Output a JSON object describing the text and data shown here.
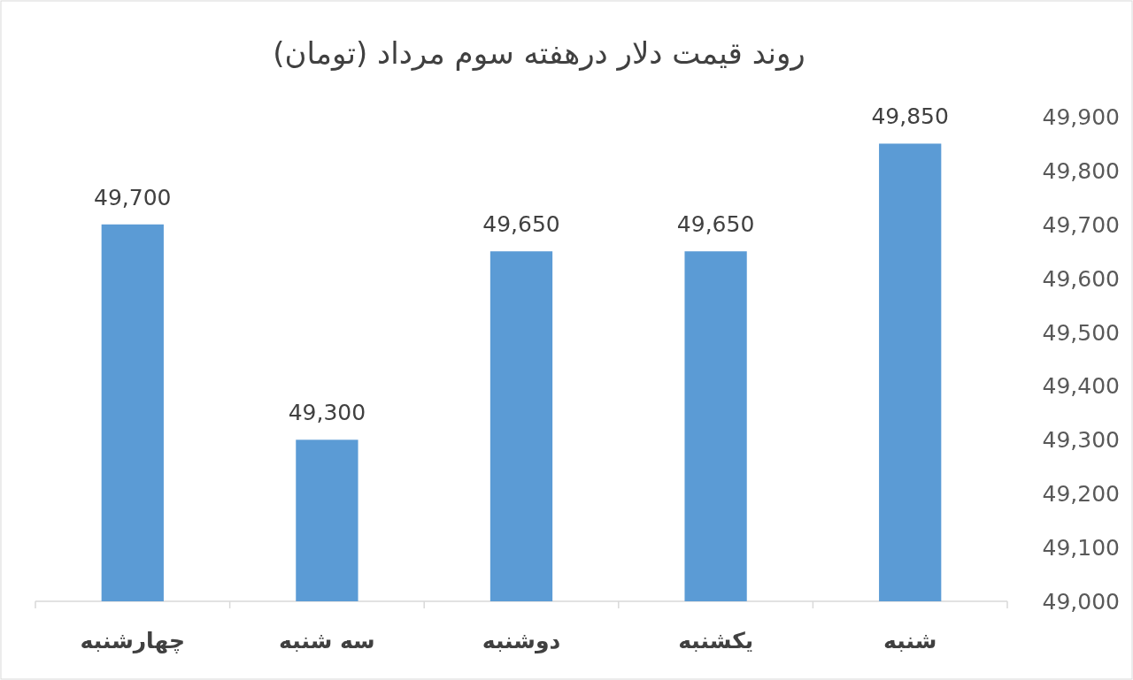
{
  "chart_data": {
    "type": "bar",
    "title": "روند قیمت دلار درهفته سوم مرداد (تومان)",
    "categories": [
      "چهارشنبه",
      "سه شنبه",
      "دوشنبه",
      "یکشنبه",
      "شنبه"
    ],
    "values": [
      49700,
      49300,
      49650,
      49650,
      49850
    ],
    "color": "#5b9bd5",
    "ylim": [
      49000,
      49900
    ],
    "yticks": [
      {
        "value": 49000,
        "label": "49,000"
      },
      {
        "value": 49100,
        "label": "49,100"
      },
      {
        "value": 49200,
        "label": "49,200"
      },
      {
        "value": 49300,
        "label": "49,300"
      },
      {
        "value": 49400,
        "label": "49,400"
      },
      {
        "value": 49500,
        "label": "49,500"
      },
      {
        "value": 49600,
        "label": "49,600"
      },
      {
        "value": 49700,
        "label": "49,700"
      },
      {
        "value": 49800,
        "label": "49,800"
      },
      {
        "value": 49900,
        "label": "49,900"
      }
    ],
    "value_labels": [
      "49,700",
      "49,300",
      "49,650",
      "49,650",
      "49,850"
    ],
    "grid": false
  }
}
